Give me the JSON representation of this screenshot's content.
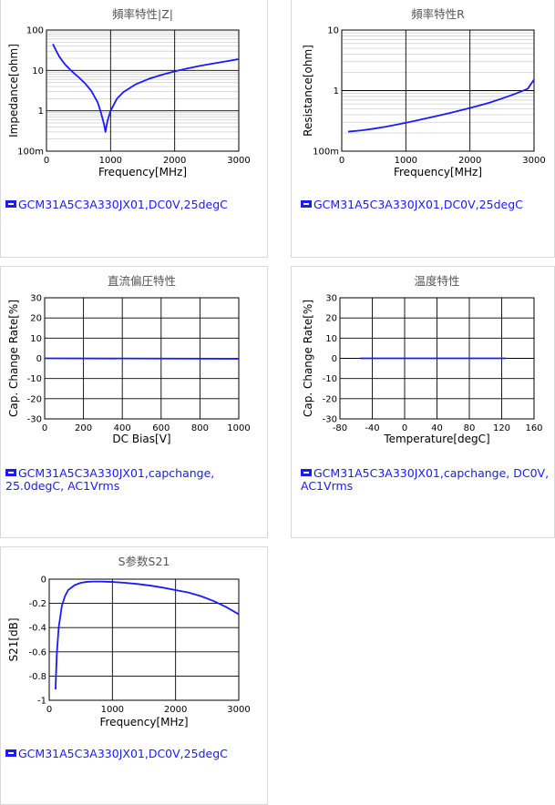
{
  "colors": {
    "series": "#1a1aff",
    "grid_major": "#000000",
    "grid_minor": "#cfcfcf"
  },
  "chart_data": [
    {
      "id": "c1",
      "type": "line",
      "title": "頻率特性|Z|",
      "xlabel": "Frequency[MHz]",
      "ylabel": "Impedance[ohm]",
      "xlim": [
        0,
        3000
      ],
      "ylim": [
        0.1,
        100
      ],
      "yscale": "log",
      "xticks": [
        "0",
        "1000",
        "2000",
        "3000"
      ],
      "yticks": [
        "100m",
        "1",
        "10",
        "100"
      ],
      "series": [
        {
          "legend": "GCM31A5C3A330JX01,DC0V,25degC",
          "x": [
            100,
            150,
            200,
            250,
            300,
            400,
            500,
            600,
            700,
            800,
            850,
            900,
            920,
            950,
            1000,
            1100,
            1200,
            1400,
            1600,
            1800,
            2000,
            2200,
            2400,
            2600,
            2800,
            3000
          ],
          "y": [
            45,
            31,
            22,
            17,
            13.5,
            9.4,
            6.8,
            4.8,
            3.1,
            1.6,
            0.9,
            0.45,
            0.3,
            0.55,
            1.0,
            2.0,
            2.9,
            4.6,
            6.2,
            7.8,
            9.5,
            11.2,
            13.0,
            14.8,
            16.8,
            19
          ]
        }
      ]
    },
    {
      "id": "c2",
      "type": "line",
      "title": "頻率特性R",
      "xlabel": "Frequency[MHz]",
      "ylabel": "Resistance[ohm]",
      "xlim": [
        0,
        3000
      ],
      "ylim": [
        0.1,
        10
      ],
      "yscale": "log",
      "xticks": [
        "0",
        "1000",
        "2000",
        "3000"
      ],
      "yticks": [
        "100m",
        "1",
        "10"
      ],
      "series": [
        {
          "legend": "GCM31A5C3A330JX01,DC0V,25degC",
          "x": [
            100,
            300,
            500,
            700,
            900,
            1100,
            1300,
            1500,
            1700,
            1900,
            2100,
            2300,
            2500,
            2700,
            2900,
            3000
          ],
          "y": [
            0.21,
            0.22,
            0.235,
            0.255,
            0.28,
            0.31,
            0.345,
            0.385,
            0.43,
            0.485,
            0.55,
            0.63,
            0.74,
            0.88,
            1.07,
            1.52
          ]
        }
      ]
    },
    {
      "id": "c3",
      "type": "line",
      "title": "直流偏圧特性",
      "xlabel": "DC Bias[V]",
      "ylabel": "Cap. Change Rate[%]",
      "xlim": [
        0,
        1000
      ],
      "ylim": [
        -30,
        30
      ],
      "yscale": "linear",
      "xticks": [
        "0",
        "200",
        "400",
        "600",
        "800",
        "1000"
      ],
      "yticks": [
        "-30",
        "-20",
        "-10",
        "0",
        "10",
        "20",
        "30"
      ],
      "series": [
        {
          "legend": "GCM31A5C3A330JX01,capchange, 25.0degC, AC1Vrms",
          "x": [
            0,
            1000
          ],
          "y": [
            0,
            -0.2
          ]
        }
      ]
    },
    {
      "id": "c4",
      "type": "line",
      "title": "温度特性",
      "xlabel": "Temperature[degC]",
      "ylabel": "Cap. Change Rate[%]",
      "xlim": [
        -80,
        160
      ],
      "ylim": [
        -30,
        30
      ],
      "yscale": "linear",
      "xticks": [
        "-80",
        "-40",
        "0",
        "40",
        "80",
        "120",
        "160"
      ],
      "yticks": [
        "-30",
        "-20",
        "-10",
        "0",
        "10",
        "20",
        "30"
      ],
      "series": [
        {
          "legend": "GCM31A5C3A330JX01,capchange, DC0V, AC1Vrms",
          "x": [
            -55,
            125
          ],
          "y": [
            0,
            0
          ]
        }
      ]
    },
    {
      "id": "c5",
      "type": "line",
      "title": "S参数S21",
      "xlabel": "Frequency[MHz]",
      "ylabel": "S21[dB]",
      "xlim": [
        0,
        3000
      ],
      "ylim": [
        -1,
        0
      ],
      "yscale": "linear",
      "xticks": [
        "0",
        "1000",
        "2000",
        "3000"
      ],
      "yticks": [
        "-1",
        "-0.8",
        "-0.6",
        "-0.4",
        "-0.2",
        "0"
      ],
      "series": [
        {
          "legend": "GCM31A5C3A330JX01,DC0V,25degC",
          "x": [
            100,
            120,
            150,
            200,
            250,
            300,
            400,
            500,
            600,
            700,
            800,
            900,
            1000,
            1200,
            1400,
            1600,
            1800,
            2000,
            2200,
            2400,
            2600,
            2800,
            3000
          ],
          "y": [
            -0.91,
            -0.62,
            -0.4,
            -0.22,
            -0.14,
            -0.09,
            -0.05,
            -0.03,
            -0.022,
            -0.02,
            -0.02,
            -0.021,
            -0.023,
            -0.03,
            -0.04,
            -0.053,
            -0.07,
            -0.09,
            -0.11,
            -0.14,
            -0.18,
            -0.23,
            -0.29
          ]
        }
      ]
    }
  ]
}
